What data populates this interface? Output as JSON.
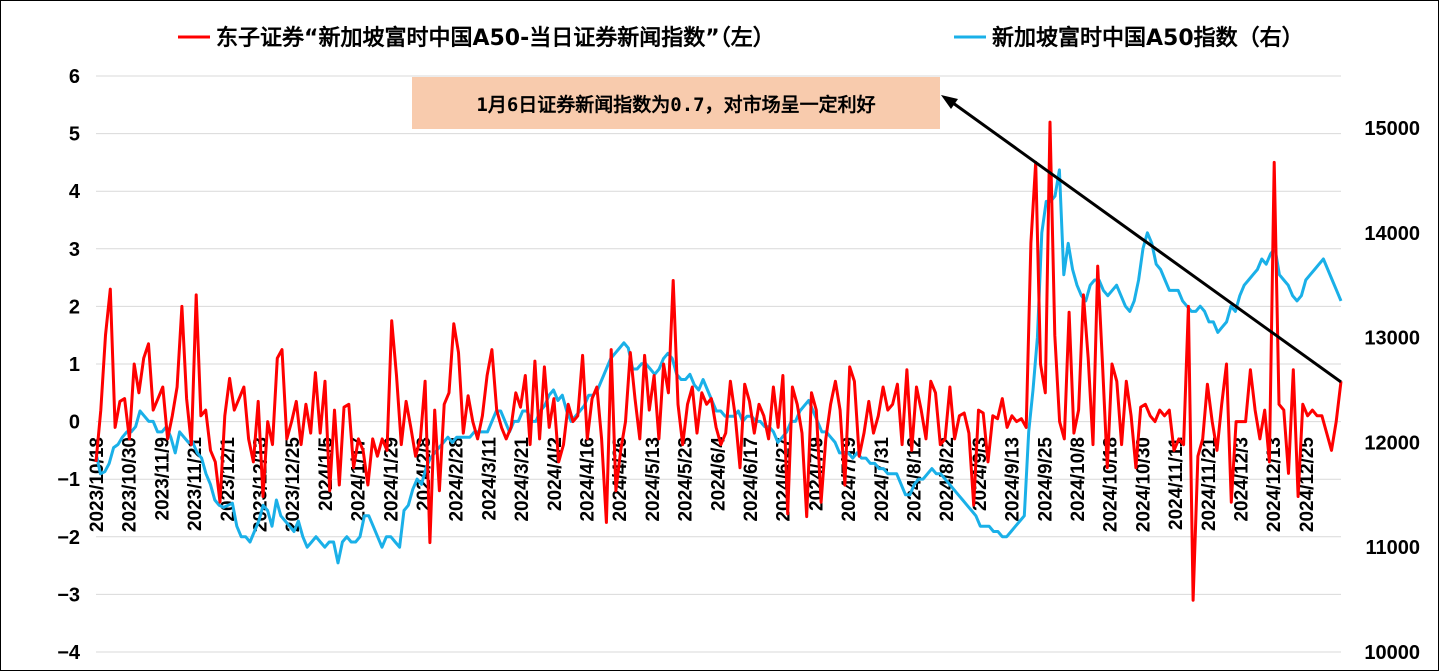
{
  "chart_data": {
    "type": "line",
    "title": "",
    "legend_placement": "top",
    "annotation": "1月6日证券新闻指数为0.7，对市场呈一定利好",
    "left_axis": {
      "ticks": [
        6,
        5,
        4,
        3,
        2,
        1,
        0,
        -1,
        -2,
        -3,
        -4
      ],
      "ylim": [
        -4,
        6
      ]
    },
    "right_axis": {
      "ticks": [
        15000,
        14000,
        13000,
        12000,
        11000,
        10000
      ],
      "ylim": [
        10000,
        15500
      ]
    },
    "x_labels": [
      "2023/10/18",
      "2023/10/30",
      "2023/11/9",
      "2023/11/21",
      "2023/12/1",
      "2023/12/13",
      "2023/12/25",
      "2024/1/5",
      "2024/1/17",
      "2024/1/29",
      "2024/2/8",
      "2024/2/28",
      "2024/3/11",
      "2024/3/21",
      "2024/4/2",
      "2024/4/16",
      "2024/4/26",
      "2024/5/13",
      "2024/5/23",
      "2024/6/4",
      "2024/6/17",
      "2024/6/27",
      "2024/7/9",
      "2024/7/19",
      "2024/7/31",
      "2024/8/12",
      "2024/8/22",
      "2024/9/3",
      "2024/9/13",
      "2024/9/25",
      "2024/10/8",
      "2024/10/18",
      "2024/10/30",
      "2024/11/11",
      "2024/11/21",
      "2024/12/3",
      "2024/12/13",
      "2024/12/25"
    ],
    "grid": true,
    "colors": {
      "news_index": "#ff0000",
      "a50_index": "#1ab0e8",
      "trend_arrow": "#000000"
    },
    "series": [
      {
        "name": "东子证券“新加坡富时中国A50-当日证券新闻指数”（左）",
        "axis": "left",
        "values": [
          -0.7,
          0.2,
          1.5,
          2.3,
          -0.1,
          0.35,
          0.4,
          -0.3,
          1.0,
          0.5,
          1.1,
          1.35,
          0.2,
          0.4,
          0.6,
          -0.3,
          0.1,
          0.6,
          2.0,
          0.4,
          -0.4,
          2.2,
          0.1,
          0.2,
          -0.5,
          -0.7,
          -1.4,
          0.1,
          0.75,
          0.2,
          0.4,
          0.6,
          -0.3,
          -0.7,
          0.35,
          -1.3,
          0.0,
          -0.4,
          1.1,
          1.25,
          -0.3,
          0.0,
          0.35,
          -0.4,
          0.3,
          -0.2,
          0.85,
          -0.2,
          0.7,
          -1.2,
          0.2,
          -1.1,
          0.25,
          0.3,
          -0.8,
          -0.3,
          -0.5,
          -1.1,
          -0.3,
          -0.6,
          -0.3,
          -0.5,
          1.75,
          0.8,
          -0.4,
          0.35,
          -0.1,
          -0.6,
          -0.3,
          0.7,
          -2.1,
          0.2,
          -1.2,
          0.3,
          0.5,
          1.7,
          1.2,
          -0.2,
          0.45,
          0.0,
          -0.3,
          0.1,
          0.8,
          1.25,
          0.2,
          -0.1,
          -0.3,
          -0.1,
          0.5,
          0.25,
          0.8,
          -0.4,
          1.05,
          -0.3,
          0.95,
          -0.1,
          0.4,
          -0.7,
          -0.4,
          0.3,
          0.0,
          0.1,
          1.15,
          -0.3,
          0.4,
          0.6,
          -0.3,
          -1.75,
          1.25,
          -1.2,
          -0.5,
          0.0,
          1.2,
          0.4,
          -0.3,
          1.15,
          0.2,
          0.8,
          -0.3,
          1.0,
          0.5,
          2.45,
          0.3,
          -0.4,
          0.3,
          0.6,
          -0.2,
          0.5,
          0.3,
          0.4,
          -0.1,
          -0.4,
          -0.2,
          0.7,
          0.1,
          -0.8,
          0.65,
          0.35,
          -0.2,
          0.3,
          0.1,
          -0.3,
          0.6,
          -0.1,
          0.8,
          -1.6,
          0.6,
          0.3,
          -0.2,
          -1.65,
          0.5,
          0.2,
          -1.4,
          -0.3,
          0.3,
          0.7,
          0.2,
          -1.1,
          0.95,
          0.7,
          -0.6,
          -0.2,
          0.35,
          -0.2,
          0.1,
          0.6,
          0.2,
          0.3,
          0.65,
          -0.4,
          0.9,
          -0.5,
          0.6,
          0.2,
          -0.3,
          0.7,
          0.5,
          -0.4,
          -0.3,
          0.6,
          -0.3,
          0.1,
          0.15,
          -0.2,
          -1.45,
          0.2,
          0.15,
          -0.7,
          0.1,
          0.05,
          0.4,
          -0.1,
          0.1,
          0.0,
          0.05,
          -0.1,
          3.1,
          4.5,
          1.0,
          0.5,
          5.2,
          1.5,
          0.0,
          -0.3,
          1.9,
          -0.2,
          0.2,
          2.2,
          1.1,
          -0.4,
          2.7,
          1.0,
          -0.8,
          1.0,
          0.7,
          -0.4,
          0.7,
          0.1,
          -0.8,
          0.25,
          0.3,
          0.1,
          0.0,
          0.2,
          0.1,
          0.2,
          -0.5,
          -0.3,
          -0.4,
          2.0,
          -3.1,
          -0.6,
          -0.3,
          0.65,
          0.0,
          -0.5,
          0.3,
          1.0,
          -1.4,
          0.0,
          0.0,
          0.0,
          0.9,
          0.2,
          -0.3,
          0.2,
          -0.7,
          4.5,
          0.3,
          0.2,
          -0.9,
          0.9,
          -1.3,
          0.3,
          0.1,
          0.2,
          0.1,
          0.1,
          -0.2,
          -0.5,
          0.0,
          0.7
        ]
      },
      {
        "name": "新加坡富时中国A50指数（右）",
        "axis": "right",
        "values": [
          11900,
          11700,
          11720,
          11800,
          11950,
          11980,
          12050,
          12100,
          12100,
          12150,
          12300,
          12250,
          12200,
          12200,
          12100,
          12100,
          12150,
          12050,
          11900,
          12100,
          12050,
          12000,
          12000,
          11900,
          11850,
          11700,
          11600,
          11450,
          11400,
          11380,
          11400,
          11420,
          11200,
          11100,
          11100,
          11050,
          11150,
          11250,
          11400,
          11350,
          11200,
          11450,
          11300,
          11250,
          11200,
          11150,
          11250,
          11100,
          11000,
          11050,
          11100,
          11050,
          11000,
          11050,
          11050,
          10850,
          11050,
          11100,
          11050,
          11050,
          11100,
          11300,
          11300,
          11200,
          11100,
          11000,
          11100,
          11100,
          11050,
          11000,
          11350,
          11400,
          11550,
          11650,
          11600,
          11750,
          11850,
          11900,
          11950,
          12000,
          12050,
          12000,
          12050,
          12050,
          12050,
          12050,
          12100,
          12100,
          12100,
          12100,
          12200,
          12300,
          12300,
          12200,
          12100,
          12200,
          12200,
          12300,
          12300,
          12200,
          12200,
          12300,
          12350,
          12450,
          12500,
          12400,
          12450,
          12300,
          12200,
          12250,
          12300,
          12350,
          12450,
          12450,
          12500,
          12600,
          12700,
          12800,
          12850,
          12900,
          12950,
          12900,
          12700,
          12700,
          12750,
          12750,
          12700,
          12650,
          12700,
          12800,
          12850,
          12800,
          12650,
          12600,
          12600,
          12650,
          12550,
          12500,
          12600,
          12500,
          12400,
          12300,
          12300,
          12250,
          12250,
          12250,
          12300,
          12200,
          12250,
          12250,
          12200,
          12200,
          12150,
          12150,
          12100,
          12000,
          12050,
          12100,
          12200,
          12200,
          12300,
          12350,
          12400,
          12300,
          12200,
          12100,
          12100,
          12050,
          12000,
          11900,
          11900,
          11900,
          11850,
          11900,
          11850,
          11850,
          11800,
          11800,
          11750,
          11750,
          11700,
          11700,
          11700,
          11600,
          11500,
          11500,
          11600,
          11650,
          11650,
          11700,
          11750,
          11700,
          11700,
          11650,
          11600,
          11550,
          11500,
          11450,
          11400,
          11350,
          11300,
          11200,
          11200,
          11200,
          11150,
          11150,
          11100,
          11100,
          11150,
          11200,
          11250,
          11300,
          12100,
          12500,
          13000,
          14000,
          14300,
          14300,
          14350,
          14600,
          13600,
          13900,
          13650,
          13500,
          13400,
          13350,
          13500,
          13550,
          13550,
          13450,
          13400,
          13450,
          13500,
          13400,
          13300,
          13250,
          13350,
          13550,
          13850,
          14000,
          13900,
          13700,
          13650,
          13550,
          13450,
          13450,
          13450,
          13350,
          13300,
          13250,
          13250,
          13300,
          13250,
          13150,
          13150,
          13050,
          13100,
          13150,
          13300,
          13250,
          13400,
          13500,
          13550,
          13600,
          13650,
          13750,
          13700,
          13800,
          13850,
          13600,
          13550,
          13500,
          13400,
          13350,
          13400,
          13550,
          13600,
          13650,
          13700,
          13750,
          13650,
          13550,
          13450,
          13350
        ]
      }
    ]
  }
}
